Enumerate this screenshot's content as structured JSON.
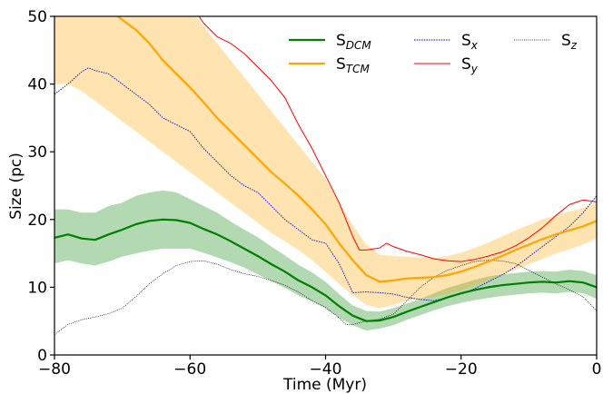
{
  "chart_data": {
    "type": "line",
    "xlabel": "Time (Myr)",
    "ylabel": "Size (pc)",
    "xlim": [
      -80,
      0
    ],
    "ylim": [
      0,
      50
    ],
    "xticks": [
      "−80",
      "−60",
      "−40",
      "−20",
      "0"
    ],
    "xtick_values": [
      -80,
      -60,
      -40,
      -20,
      0
    ],
    "yticks": [
      "0",
      "10",
      "20",
      "30",
      "40",
      "50"
    ],
    "ytick_values": [
      0,
      10,
      20,
      30,
      40,
      50
    ],
    "grid": false,
    "legend_placement": "top-right",
    "series": [
      {
        "name": "S",
        "subscript": "DCM",
        "color": "#008000",
        "style": "solid",
        "x": [
          -80,
          -78,
          -76,
          -74,
          -72,
          -70,
          -68,
          -66,
          -64,
          -62,
          -60,
          -58,
          -56,
          -54,
          -52,
          -50,
          -48,
          -46,
          -44,
          -42,
          -40,
          -38,
          -36,
          -34,
          -32,
          -30,
          -28,
          -26,
          -24,
          -22,
          -20,
          -18,
          -16,
          -14,
          -12,
          -10,
          -8,
          -6,
          -4,
          -2,
          0
        ],
        "values": [
          17.3,
          17.8,
          17.2,
          17.0,
          17.8,
          18.5,
          19.3,
          19.8,
          20.0,
          19.9,
          19.5,
          18.6,
          17.8,
          16.8,
          15.7,
          14.6,
          13.4,
          12.3,
          11.0,
          10.0,
          8.8,
          7.2,
          5.8,
          5.0,
          5.1,
          5.6,
          6.4,
          7.1,
          7.8,
          8.5,
          9.1,
          9.6,
          10.0,
          10.3,
          10.5,
          10.7,
          10.8,
          10.7,
          10.9,
          10.7,
          10.0
        ]
      },
      {
        "name": "S",
        "subscript": "TCM",
        "color": "#FFA500",
        "style": "solid",
        "x": [
          -80,
          -78,
          -76,
          -74,
          -72,
          -70,
          -68,
          -66,
          -64,
          -62,
          -60,
          -58,
          -56,
          -54,
          -52,
          -50,
          -48,
          -46,
          -44,
          -42,
          -40,
          -38,
          -36,
          -34,
          -32,
          -30,
          -28,
          -26,
          -24,
          -22,
          -20,
          -18,
          -16,
          -14,
          -12,
          -10,
          -8,
          -6,
          -4,
          -2,
          0
        ],
        "values": [
          56,
          55,
          54,
          53,
          51,
          49.5,
          48,
          46,
          43.5,
          41.5,
          39.5,
          37.3,
          35,
          33,
          31,
          29,
          27,
          25.3,
          23.5,
          21.5,
          19.3,
          16.5,
          14.0,
          11.8,
          10.8,
          11.0,
          11.3,
          11.4,
          11.5,
          11.8,
          12.3,
          13.0,
          13.8,
          14.6,
          15.5,
          16.3,
          17.1,
          17.8,
          18.4,
          19.0,
          19.8
        ]
      },
      {
        "name": "S",
        "subscript": "x",
        "color": "#0000CC",
        "style": "dotted",
        "x": [
          -80,
          -78,
          -76,
          -75,
          -74,
          -72,
          -70,
          -68,
          -66,
          -64,
          -62,
          -60,
          -58,
          -56,
          -54,
          -52,
          -50,
          -48,
          -46,
          -44,
          -42,
          -40,
          -38,
          -36,
          -34,
          -32,
          -30,
          -28,
          -26,
          -24,
          -22,
          -20,
          -18,
          -16,
          -14,
          -12,
          -10,
          -8,
          -6,
          -4,
          -2,
          0
        ],
        "values": [
          38.5,
          40.0,
          41.8,
          42.4,
          42.0,
          41.5,
          40.0,
          38.5,
          37.0,
          35.0,
          34.0,
          33.0,
          30.5,
          28.5,
          26.5,
          25.0,
          24.0,
          22.0,
          20.0,
          18.5,
          17.0,
          16.5,
          13.5,
          9.2,
          9.3,
          9.2,
          9.0,
          8.5,
          8.2,
          8.0,
          8.5,
          9.0,
          9.8,
          10.8,
          11.8,
          13.0,
          14.5,
          16.0,
          17.5,
          19.0,
          21.0,
          23.5
        ]
      },
      {
        "name": "S",
        "subscript": "y",
        "color": "#FF0000",
        "style": "solid-thin",
        "x": [
          -59,
          -58,
          -56,
          -54,
          -52,
          -50,
          -48,
          -46,
          -44,
          -42,
          -40,
          -38,
          -36,
          -35,
          -34,
          -32,
          -31,
          -30,
          -28,
          -26,
          -24,
          -22,
          -20,
          -18,
          -16,
          -14,
          -12,
          -10,
          -8,
          -6,
          -4,
          -2,
          0
        ],
        "values": [
          50.5,
          49.0,
          47.0,
          46.0,
          44.5,
          42.5,
          40.5,
          38.0,
          34.0,
          30.5,
          26.5,
          22.5,
          17.5,
          15.5,
          15.5,
          15.8,
          16.5,
          16.0,
          15.3,
          14.8,
          14.2,
          13.9,
          13.8,
          14.1,
          14.6,
          15.2,
          16.1,
          17.3,
          18.8,
          20.6,
          22.2,
          22.9,
          22.6
        ]
      },
      {
        "name": "S",
        "subscript": "z",
        "color": "#000000",
        "style": "dotted-thin",
        "x": [
          -80,
          -78,
          -76,
          -74,
          -72,
          -70,
          -68,
          -66,
          -64,
          -62,
          -60,
          -58,
          -56,
          -54,
          -52,
          -50,
          -48,
          -46,
          -44,
          -42,
          -40,
          -38,
          -37,
          -36,
          -34,
          -32,
          -30,
          -28,
          -26,
          -24,
          -22,
          -20,
          -18,
          -16,
          -14,
          -12,
          -10,
          -8,
          -6,
          -4,
          -2,
          0
        ],
        "values": [
          3.0,
          4.5,
          5.2,
          5.6,
          6.1,
          6.9,
          8.6,
          10.5,
          12.0,
          13.2,
          13.8,
          13.9,
          13.4,
          12.6,
          12.0,
          11.6,
          11.0,
          10.3,
          9.3,
          8.0,
          7.0,
          5.5,
          4.5,
          4.5,
          5.0,
          5.3,
          6.0,
          8.0,
          10.0,
          11.5,
          12.5,
          13.2,
          13.8,
          14.0,
          13.9,
          13.5,
          12.5,
          11.5,
          10.5,
          9.6,
          8.6,
          6.5
        ]
      }
    ],
    "bands": [
      {
        "series": "S_DCM",
        "color": "#008000",
        "opacity": 0.3,
        "x": [
          -80,
          -78,
          -76,
          -74,
          -72,
          -70,
          -68,
          -66,
          -64,
          -62,
          -60,
          -58,
          -56,
          -54,
          -52,
          -50,
          -48,
          -46,
          -44,
          -42,
          -40,
          -38,
          -36,
          -34,
          -32,
          -30,
          -28,
          -26,
          -24,
          -22,
          -20,
          -18,
          -16,
          -14,
          -12,
          -10,
          -8,
          -6,
          -4,
          -2,
          0
        ],
        "upper": [
          21.5,
          21.5,
          21.0,
          21.0,
          22.0,
          22.5,
          23.5,
          24.0,
          24.3,
          24.0,
          23.0,
          22.0,
          21.0,
          19.7,
          18.5,
          17.4,
          16.0,
          14.7,
          13.3,
          12.2,
          10.8,
          9.0,
          7.3,
          6.5,
          6.4,
          6.9,
          7.6,
          8.3,
          9.1,
          9.9,
          10.5,
          11.1,
          11.6,
          11.9,
          12.1,
          12.3,
          12.4,
          12.3,
          12.6,
          12.4,
          11.8
        ],
        "lower": [
          13.5,
          14.0,
          13.5,
          13.2,
          13.8,
          14.5,
          15.0,
          15.4,
          15.7,
          15.7,
          15.7,
          15.1,
          14.4,
          13.7,
          12.9,
          11.9,
          10.9,
          9.9,
          8.8,
          7.9,
          6.9,
          5.5,
          4.4,
          3.6,
          3.9,
          4.4,
          5.2,
          5.9,
          6.6,
          7.2,
          7.7,
          8.1,
          8.4,
          8.7,
          8.9,
          9.1,
          9.2,
          9.1,
          9.3,
          9.1,
          8.3
        ]
      },
      {
        "series": "S_TCM",
        "color": "#FFA500",
        "opacity": 0.3,
        "x": [
          -80,
          -78,
          -76,
          -74,
          -72,
          -70,
          -68,
          -66,
          -64,
          -62,
          -60,
          -58,
          -56,
          -54,
          -52,
          -50,
          -48,
          -46,
          -44,
          -42,
          -40,
          -38,
          -36,
          -34,
          -32,
          -30,
          -28,
          -26,
          -24,
          -22,
          -20,
          -18,
          -16,
          -14,
          -12,
          -10,
          -8,
          -6,
          -4,
          -2,
          0
        ],
        "upper": [
          72,
          70,
          69,
          67,
          65,
          63,
          61,
          58.5,
          56,
          53.5,
          51,
          48.5,
          46,
          43.5,
          41,
          38.5,
          36,
          33.5,
          31,
          28.5,
          26,
          22.5,
          19.2,
          16.3,
          14.8,
          14.6,
          14.5,
          14.4,
          14.4,
          14.6,
          15.1,
          15.8,
          16.6,
          17.5,
          18.4,
          19.2,
          20.0,
          20.6,
          21.2,
          21.7,
          22.5
        ],
        "lower": [
          40,
          40,
          39,
          37.5,
          36,
          34.5,
          33,
          31.5,
          30,
          28.5,
          27,
          25.5,
          24,
          22.5,
          21,
          19.5,
          18,
          16.8,
          15.5,
          14.0,
          12.3,
          10.5,
          8.8,
          7.4,
          6.9,
          7.4,
          8.0,
          8.3,
          8.6,
          9.0,
          9.5,
          10.2,
          11.0,
          11.8,
          12.6,
          13.4,
          14.2,
          15.0,
          15.6,
          16.3,
          17.2
        ]
      }
    ]
  }
}
